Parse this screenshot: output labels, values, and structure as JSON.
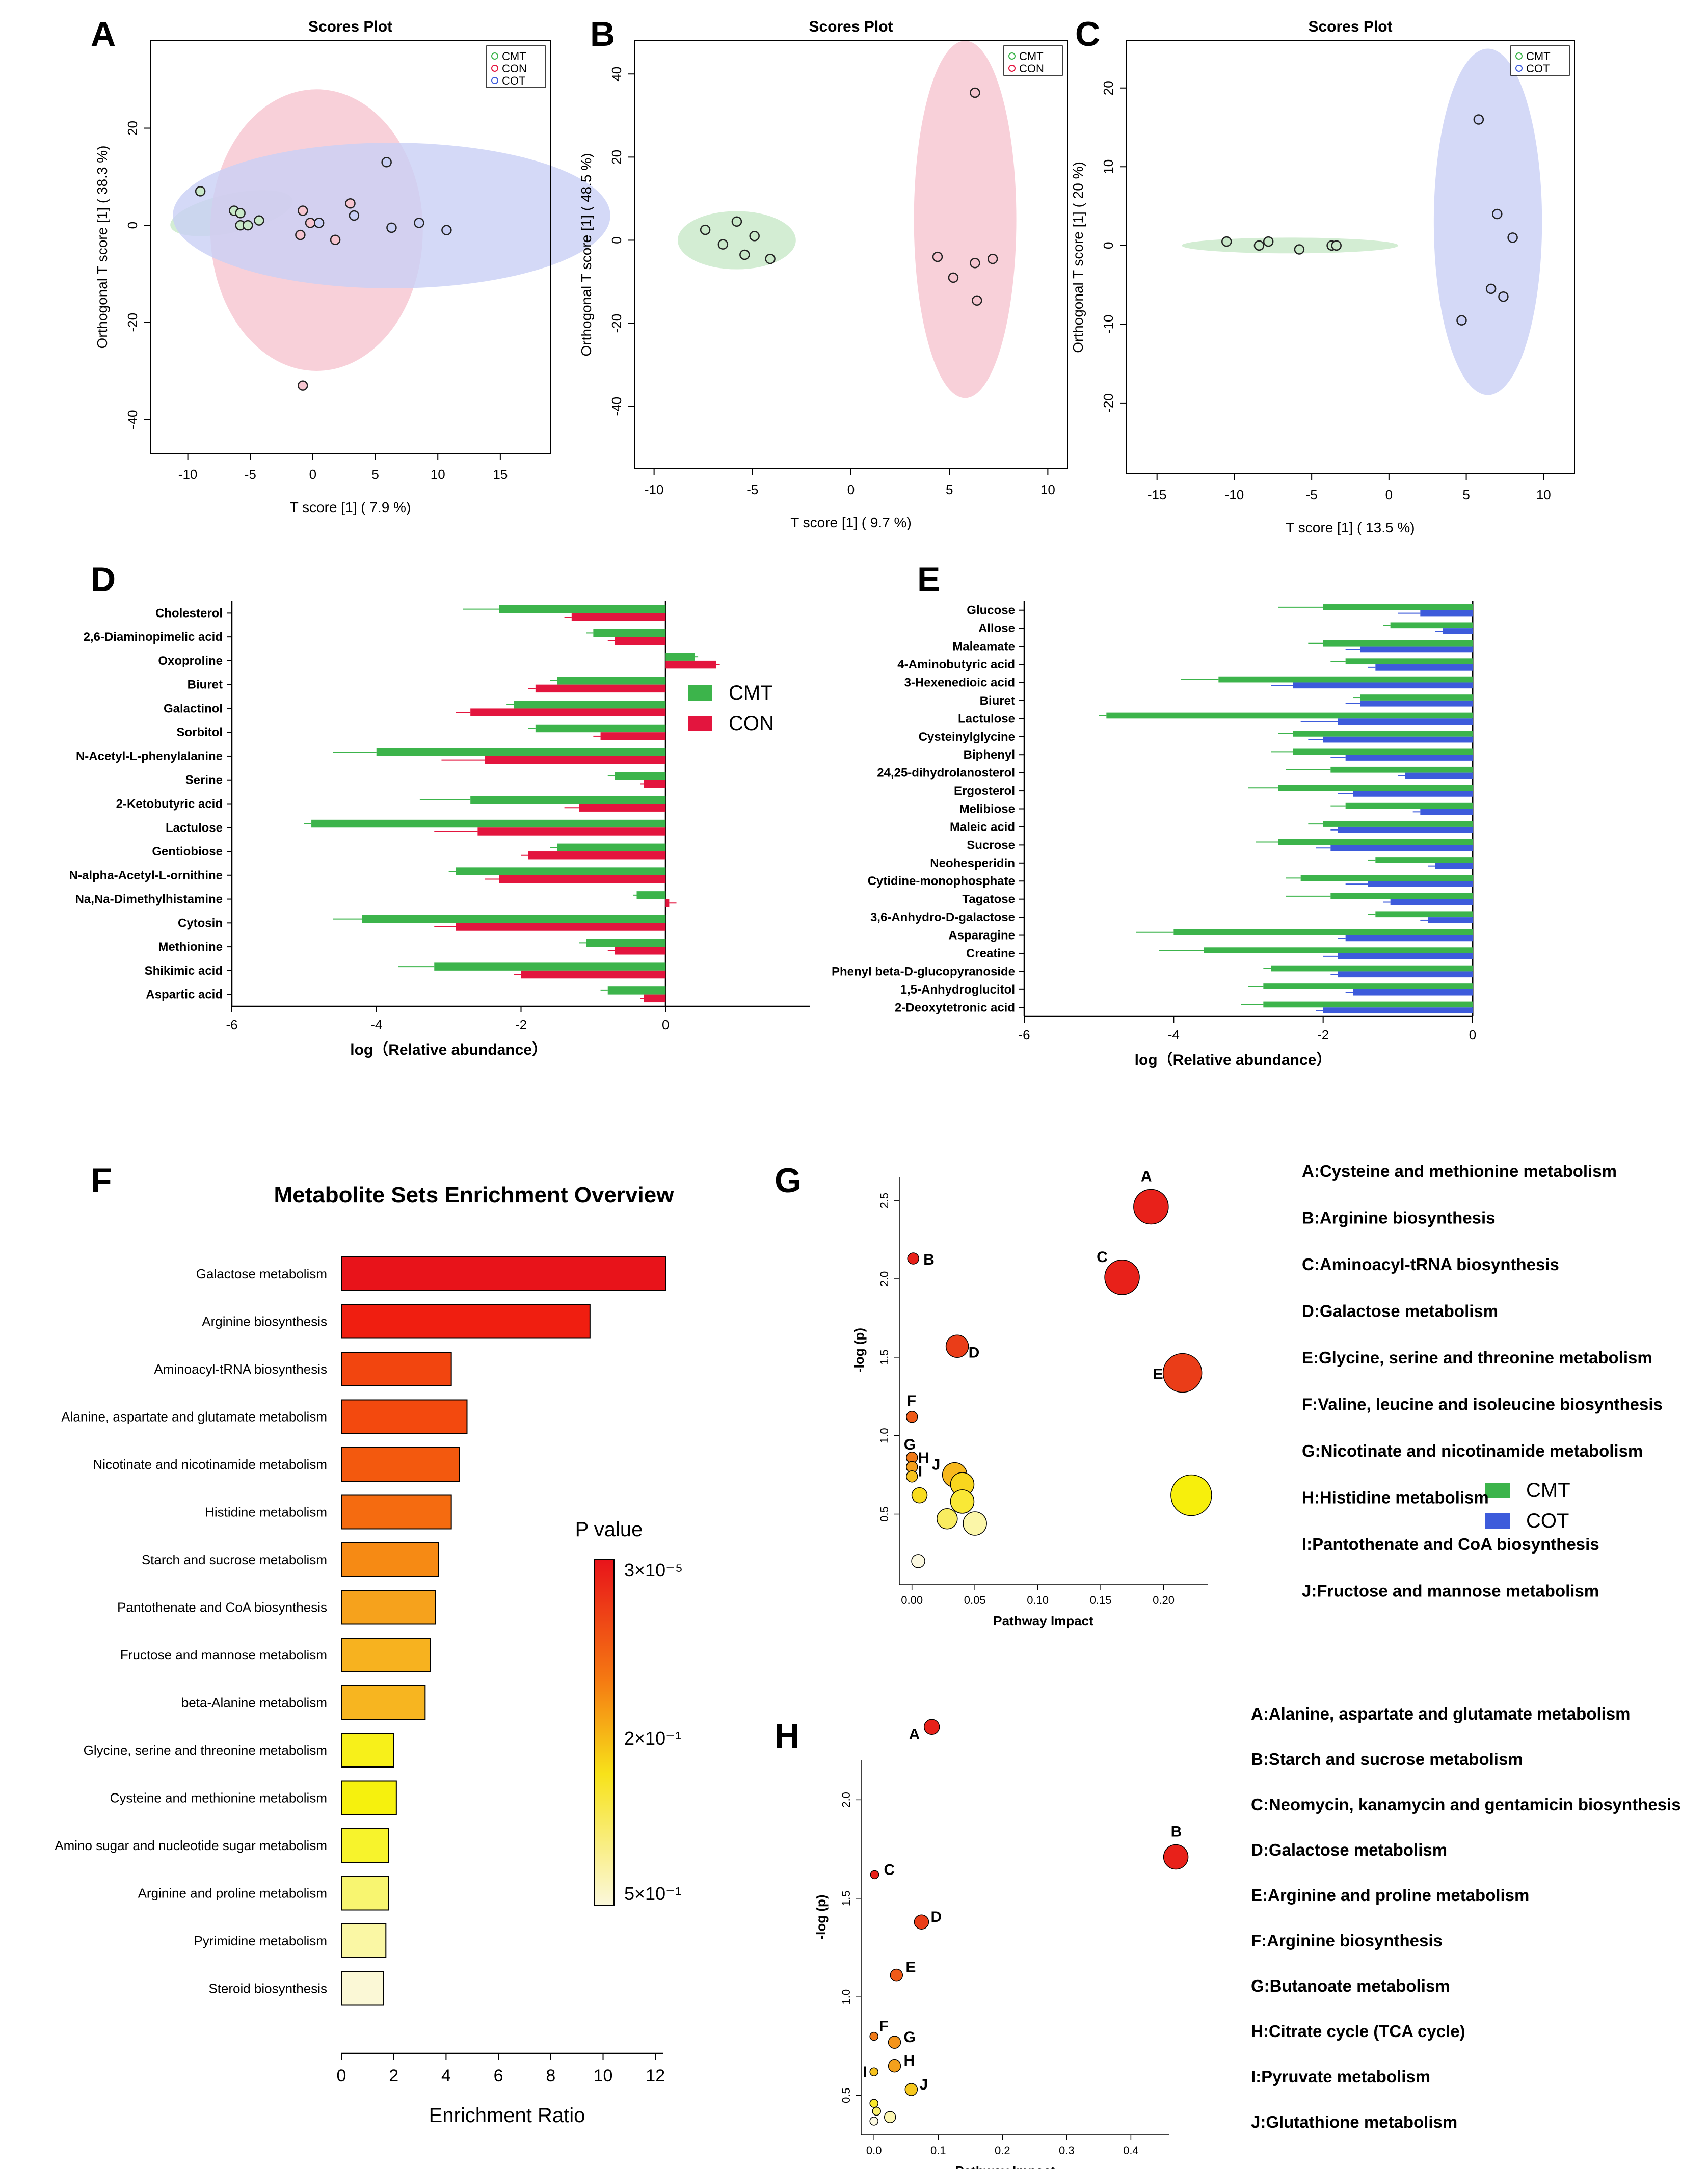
{
  "panel_labels": {
    "A": "A",
    "B": "B",
    "C": "C",
    "D": "D",
    "E": "E",
    "F": "F",
    "G": "G",
    "H": "H"
  },
  "colors": {
    "CMT": "#3cb44b",
    "CON": "#e3153e",
    "COT": "#3d5bdb",
    "CMT_ellipse": "#c8e8c8",
    "CON_ellipse": "#f6c4cf",
    "COT_ellipse": "#c9cff5"
  },
  "chart_data": [
    {
      "id": "A",
      "type": "scatter",
      "title": "Scores Plot",
      "xlabel": "T score [1] ( 7.9 %)",
      "ylabel": "Orthogonal T score [1] ( 38.3 %)",
      "xlim": [
        -13,
        19
      ],
      "ylim": [
        -47,
        38
      ],
      "xticks": [
        -10,
        -5,
        0,
        5,
        10,
        15
      ],
      "yticks": [
        -40,
        -20,
        0,
        20
      ],
      "legend": [
        "CMT",
        "CON",
        "COT"
      ],
      "series": [
        {
          "name": "CMT",
          "points": [
            [
              -9,
              7
            ],
            [
              -6.3,
              3
            ],
            [
              -5.8,
              2.5
            ],
            [
              -5.8,
              0
            ],
            [
              -5.2,
              0
            ],
            [
              -4.3,
              1
            ]
          ]
        },
        {
          "name": "CON",
          "points": [
            [
              -0.8,
              3
            ],
            [
              -0.2,
              0.5
            ],
            [
              -1,
              -2
            ],
            [
              1.8,
              -3
            ],
            [
              3,
              4.5
            ],
            [
              -0.8,
              -33
            ]
          ]
        },
        {
          "name": "COT",
          "points": [
            [
              0.5,
              0.5
            ],
            [
              3.3,
              2
            ],
            [
              5.9,
              13
            ],
            [
              6.3,
              -0.5
            ],
            [
              8.5,
              0.5
            ],
            [
              10.7,
              -1
            ]
          ]
        }
      ],
      "ellipses": [
        {
          "name": "CMT",
          "cx": -6.5,
          "cy": 2.5,
          "rx": 5,
          "ry": 4,
          "angle": -12
        },
        {
          "name": "CON",
          "cx": 0.3,
          "cy": -1,
          "rx": 8.5,
          "ry": 29,
          "angle": 0
        },
        {
          "name": "COT",
          "cx": 6.3,
          "cy": 2,
          "rx": 17.5,
          "ry": 15,
          "angle": 0
        }
      ]
    },
    {
      "id": "B",
      "type": "scatter",
      "title": "Scores Plot",
      "xlabel": "T score [1] ( 9.7 %)",
      "ylabel": "Orthogonal T score [1] ( 48.5 %)",
      "xlim": [
        -11,
        11
      ],
      "ylim": [
        -55,
        48
      ],
      "xticks": [
        -10,
        -5,
        0,
        5,
        10
      ],
      "yticks": [
        -40,
        -20,
        0,
        20,
        40
      ],
      "legend": [
        "CMT",
        "CON"
      ],
      "series": [
        {
          "name": "CMT",
          "points": [
            [
              -7.4,
              2.5
            ],
            [
              -6.5,
              -1
            ],
            [
              -5.8,
              4.5
            ],
            [
              -5.4,
              -3.5
            ],
            [
              -4.9,
              1
            ],
            [
              -4.1,
              -4.5
            ]
          ]
        },
        {
          "name": "CON",
          "points": [
            [
              6.3,
              35.5
            ],
            [
              4.4,
              -4
            ],
            [
              5.2,
              -9
            ],
            [
              6.3,
              -5.5
            ],
            [
              7.2,
              -4.5
            ],
            [
              6.4,
              -14.5
            ]
          ]
        }
      ],
      "ellipses": [
        {
          "name": "CMT",
          "cx": -5.8,
          "cy": 0,
          "rx": 3,
          "ry": 7,
          "angle": 0
        },
        {
          "name": "CON",
          "cx": 5.8,
          "cy": 5,
          "rx": 2.6,
          "ry": 43,
          "angle": 0
        }
      ]
    },
    {
      "id": "C",
      "type": "scatter",
      "title": "Scores Plot",
      "xlabel": "T score [1] ( 13.5 %)",
      "ylabel": "Orthogonal T score [1] ( 20 %)",
      "xlim": [
        -17,
        12
      ],
      "ylim": [
        -29,
        26
      ],
      "xticks": [
        -15,
        -10,
        -5,
        0,
        5,
        10
      ],
      "yticks": [
        -20,
        -10,
        0,
        10,
        20
      ],
      "legend": [
        "CMT",
        "COT"
      ],
      "series": [
        {
          "name": "CMT",
          "points": [
            [
              -10.5,
              0.5
            ],
            [
              -8.4,
              0
            ],
            [
              -7.8,
              0.5
            ],
            [
              -5.8,
              -0.5
            ],
            [
              -3.7,
              0
            ],
            [
              -3.4,
              0
            ]
          ]
        },
        {
          "name": "COT",
          "points": [
            [
              5.8,
              16
            ],
            [
              7,
              4
            ],
            [
              8,
              1
            ],
            [
              6.6,
              -5.5
            ],
            [
              7.4,
              -6.5
            ],
            [
              4.7,
              -9.5
            ]
          ]
        }
      ],
      "ellipses": [
        {
          "name": "CMT",
          "cx": -6.4,
          "cy": 0,
          "rx": 7,
          "ry": 1,
          "angle": 0
        },
        {
          "name": "COT",
          "cx": 6.4,
          "cy": 3,
          "rx": 3.5,
          "ry": 22,
          "angle": 0
        }
      ]
    },
    {
      "id": "D",
      "type": "bar",
      "orientation": "horizontal",
      "xlabel": "log（Relative abundance）",
      "xlim": [
        -6,
        2
      ],
      "xticks": [
        -6,
        -4,
        -2,
        0
      ],
      "categories": [
        "Cholesterol",
        "2,6-Diaminopimelic acid",
        "Oxoproline",
        "Biuret",
        "Galactinol",
        "Sorbitol",
        "N-Acetyl-L-phenylalanine",
        "Serine",
        "2-Ketobutyric acid",
        "Lactulose",
        "Gentiobiose",
        "N-alpha-Acetyl-L-ornithine",
        "Na,Na-Dimethylhistamine",
        "Cytosin",
        "Methionine",
        "Shikimic acid",
        "Aspartic acid"
      ],
      "series": [
        {
          "name": "CMT",
          "values": [
            -2.3,
            -1.0,
            0.4,
            -1.5,
            -2.1,
            -1.8,
            -4.0,
            -0.7,
            -2.7,
            -4.9,
            -1.5,
            -2.9,
            -0.4,
            -4.2,
            -1.1,
            -3.2,
            -0.8
          ],
          "errors": [
            0.5,
            0.1,
            0.05,
            0.1,
            0.1,
            0.1,
            0.6,
            0.1,
            0.7,
            0.1,
            0.1,
            0.1,
            0.05,
            0.4,
            0.1,
            0.5,
            0.1
          ]
        },
        {
          "name": "CON",
          "values": [
            -1.3,
            -0.7,
            0.7,
            -1.8,
            -2.7,
            -0.9,
            -2.5,
            -0.3,
            -1.2,
            -2.6,
            -1.9,
            -2.3,
            0.05,
            -2.9,
            -0.7,
            -2.0,
            -0.3
          ],
          "errors": [
            0.1,
            0.1,
            0.05,
            0.1,
            0.2,
            0.1,
            0.6,
            0.05,
            0.2,
            0.6,
            0.1,
            0.2,
            0.1,
            0.3,
            0.1,
            0.1,
            0.05
          ]
        }
      ],
      "legend": [
        "CMT",
        "CON"
      ]
    },
    {
      "id": "E",
      "type": "bar",
      "orientation": "horizontal",
      "xlabel": "log（Relative abundance）",
      "xlim": [
        -6,
        0
      ],
      "xticks": [
        -6,
        -4,
        -2,
        0
      ],
      "categories": [
        "Glucose",
        "Allose",
        "Maleamate",
        "4-Aminobutyric acid",
        "3-Hexenedioic acid",
        "Biuret",
        "Lactulose",
        "Cysteinylglycine",
        "Biphenyl",
        "24,25-dihydrolanosterol",
        "Ergosterol",
        "Melibiose",
        "Maleic acid",
        "Sucrose",
        "Neohesperidin",
        "Cytidine-monophosphate",
        "Tagatose",
        "3,6-Anhydro-D-galactose",
        "Asparagine",
        "Creatine",
        "Phenyl beta-D-glucopyranoside",
        "1,5-Anhydroglucitol",
        "2-Deoxytetronic acid"
      ],
      "series": [
        {
          "name": "CMT",
          "values": [
            -2.0,
            -1.1,
            -2.0,
            -1.7,
            -3.4,
            -1.5,
            -4.9,
            -2.4,
            -2.4,
            -1.9,
            -2.6,
            -1.7,
            -2.0,
            -2.6,
            -1.3,
            -2.3,
            -1.9,
            -1.3,
            -4.0,
            -3.6,
            -2.7,
            -2.8,
            -2.8
          ],
          "errors": [
            0.6,
            0.1,
            0.2,
            0.2,
            0.5,
            0.1,
            0.1,
            0.2,
            0.3,
            0.6,
            0.4,
            0.2,
            0.2,
            0.3,
            0.1,
            0.2,
            0.6,
            0.1,
            0.5,
            0.6,
            0.1,
            0.2,
            0.3
          ]
        },
        {
          "name": "COT",
          "values": [
            -0.7,
            -0.4,
            -1.5,
            -1.3,
            -2.4,
            -1.5,
            -1.8,
            -2.0,
            -1.7,
            -0.9,
            -1.6,
            -0.7,
            -1.8,
            -1.9,
            -0.5,
            -1.4,
            -1.1,
            -0.6,
            -1.7,
            -1.8,
            -1.8,
            -1.6,
            -2.0
          ],
          "errors": [
            0.3,
            0.1,
            0.2,
            0.1,
            0.3,
            0.2,
            0.5,
            0.2,
            0.2,
            0.1,
            0.2,
            0.1,
            0.1,
            0.2,
            0.1,
            0.3,
            0.1,
            0.1,
            0.1,
            0.2,
            0.1,
            0.1,
            0.1
          ]
        }
      ],
      "legend": [
        "CMT",
        "COT"
      ]
    },
    {
      "id": "F",
      "type": "bar",
      "orientation": "horizontal",
      "title": "Metabolite Sets Enrichment Overview",
      "xlabel": "Enrichment Ratio",
      "xlim": [
        0,
        12.5
      ],
      "xticks": [
        0,
        2,
        4,
        6,
        8,
        10,
        12
      ],
      "categories": [
        "Galactose metabolism",
        "Arginine biosynthesis",
        "Aminoacyl-tRNA biosynthesis",
        "Alanine, aspartate and glutamate metabolism",
        "Nicotinate and nicotinamide metabolism",
        "Histidine metabolism",
        "Starch and sucrose metabolism",
        "Pantothenate and CoA biosynthesis",
        "Fructose and mannose metabolism",
        "beta-Alanine metabolism",
        "Glycine, serine and threonine metabolism",
        "Cysteine and methionine metabolism",
        "Amino sugar and nucleotide sugar metabolism",
        "Arginine and proline metabolism",
        "Pyrimidine metabolism",
        "Steroid biosynthesis"
      ],
      "values": [
        12.4,
        9.5,
        4.2,
        4.8,
        4.5,
        4.2,
        3.7,
        3.6,
        3.4,
        3.2,
        2.0,
        2.1,
        1.8,
        1.8,
        1.7,
        1.6
      ],
      "colors": [
        "#e8131a",
        "#f01e10",
        "#f2450f",
        "#f3490e",
        "#f3590e",
        "#f56b10",
        "#f68a14",
        "#f6a21c",
        "#f7b21f",
        "#f7b520",
        "#f7f01a",
        "#f6f10d",
        "#f7f32c",
        "#f8f570",
        "#faf7a4",
        "#fbf8d6"
      ],
      "legend_title": "P value",
      "legend_labels": [
        "3×10⁻⁵",
        "2×10⁻¹",
        "5×10⁻¹"
      ]
    },
    {
      "id": "G",
      "type": "scatter",
      "subtype": "bubble",
      "xlabel": "Pathway Impact",
      "ylabel": "-log (p)",
      "xlim": [
        -0.01,
        0.235
      ],
      "ylim": [
        0.05,
        2.65
      ],
      "xticks": [
        0.0,
        0.05,
        0.1,
        0.15,
        0.2
      ],
      "xtick_labels": [
        "0.00",
        "0.05",
        "0.10",
        "0.15",
        "0.20"
      ],
      "yticks": [
        0.5,
        1.0,
        1.5,
        2.0,
        2.5
      ],
      "ytick_labels": [
        "0.5",
        "1.0",
        "1.5",
        "2.0",
        "2.5"
      ],
      "points": [
        {
          "label": "A",
          "x": 0.19,
          "y": 2.46,
          "size": 34,
          "color": "#e8211a"
        },
        {
          "label": "B",
          "x": 0.001,
          "y": 2.13,
          "size": 11,
          "color": "#e8211a"
        },
        {
          "label": "C",
          "x": 0.167,
          "y": 2.01,
          "size": 34,
          "color": "#e8211a"
        },
        {
          "label": "D",
          "x": 0.036,
          "y": 1.57,
          "size": 22,
          "color": "#ea3d18"
        },
        {
          "label": "E",
          "x": 0.215,
          "y": 1.4,
          "size": 38,
          "color": "#ea3d18"
        },
        {
          "label": "F",
          "x": 0.0,
          "y": 1.12,
          "size": 11,
          "color": "#ef5a18"
        },
        {
          "label": "G",
          "x": 0.0,
          "y": 0.86,
          "size": 11,
          "color": "#f07a18"
        },
        {
          "label": "H",
          "x": 0.0,
          "y": 0.8,
          "size": 11,
          "color": "#f3a01c"
        },
        {
          "label": "I",
          "x": 0.0,
          "y": 0.74,
          "size": 11,
          "color": "#f6c21e"
        },
        {
          "label": "J",
          "x": 0.034,
          "y": 0.75,
          "size": 24,
          "color": "#f7b81e"
        },
        {
          "label": "",
          "x": 0.006,
          "y": 0.62,
          "size": 15,
          "color": "#f8dc1e"
        },
        {
          "label": "",
          "x": 0.04,
          "y": 0.69,
          "size": 23,
          "color": "#f8d61e"
        },
        {
          "label": "",
          "x": 0.04,
          "y": 0.58,
          "size": 23,
          "color": "#f9e836"
        },
        {
          "label": "",
          "x": 0.028,
          "y": 0.47,
          "size": 20,
          "color": "#f9ec60"
        },
        {
          "label": "",
          "x": 0.05,
          "y": 0.44,
          "size": 23,
          "color": "#fbf6a8"
        },
        {
          "label": "",
          "x": 0.222,
          "y": 0.62,
          "size": 40,
          "color": "#f7ef0c"
        },
        {
          "label": "",
          "x": 0.005,
          "y": 0.2,
          "size": 13,
          "color": "#fbf8e0"
        }
      ],
      "legend": [
        "A:Cysteine and methionine metabolism",
        "B:Arginine biosynthesis",
        "C:Aminoacyl-tRNA biosynthesis",
        "D:Galactose metabolism",
        "E:Glycine, serine and threonine metabolism",
        "F:Valine, leucine and isoleucine biosynthesis",
        "G:Nicotinate and nicotinamide metabolism",
        "H:Histidine metabolism",
        "I:Pantothenate and CoA biosynthesis",
        "J:Fructose and mannose metabolism"
      ]
    },
    {
      "id": "H",
      "type": "scatter",
      "subtype": "bubble",
      "xlabel": "Pathway Impact",
      "ylabel": "-log (p)",
      "xlim": [
        -0.02,
        0.46
      ],
      "ylim": [
        0.3,
        2.2
      ],
      "xticks": [
        0.0,
        0.1,
        0.2,
        0.3,
        0.4
      ],
      "xtick_labels": [
        "0.0",
        "0.1",
        "0.2",
        "0.3",
        "0.4"
      ],
      "yticks": [
        0.5,
        1.0,
        1.5,
        2.0
      ],
      "ytick_labels": [
        "0.5",
        "1.0",
        "1.5",
        "2.0"
      ],
      "points": [
        {
          "label": "A",
          "x": 0.09,
          "y": 2.37,
          "size": 15,
          "color": "#e8211a"
        },
        {
          "label": "B",
          "x": 0.47,
          "y": 1.71,
          "size": 24,
          "color": "#e8211a"
        },
        {
          "label": "C",
          "x": 0.001,
          "y": 1.62,
          "size": 8,
          "color": "#e8211a"
        },
        {
          "label": "D",
          "x": 0.074,
          "y": 1.38,
          "size": 14,
          "color": "#ea3d18"
        },
        {
          "label": "E",
          "x": 0.035,
          "y": 1.11,
          "size": 12,
          "color": "#ef5a18"
        },
        {
          "label": "F",
          "x": 0.0,
          "y": 0.8,
          "size": 8,
          "color": "#f07a18"
        },
        {
          "label": "G",
          "x": 0.032,
          "y": 0.77,
          "size": 12,
          "color": "#f3941c"
        },
        {
          "label": "H",
          "x": 0.032,
          "y": 0.65,
          "size": 12,
          "color": "#f3a01c"
        },
        {
          "label": "I",
          "x": 0.0,
          "y": 0.62,
          "size": 8,
          "color": "#f6c21e"
        },
        {
          "label": "J",
          "x": 0.058,
          "y": 0.53,
          "size": 12,
          "color": "#f6c81e"
        },
        {
          "label": "",
          "x": 0.0,
          "y": 0.46,
          "size": 8,
          "color": "#f8e82a"
        },
        {
          "label": "",
          "x": 0.004,
          "y": 0.42,
          "size": 8,
          "color": "#f9f06a"
        },
        {
          "label": "",
          "x": 0.025,
          "y": 0.39,
          "size": 11,
          "color": "#fbf6b0"
        },
        {
          "label": "",
          "x": 0.0,
          "y": 0.37,
          "size": 8,
          "color": "#fbf8e0"
        }
      ],
      "legend": [
        "A:Alanine, aspartate and glutamate metabolism",
        "B:Starch and sucrose metabolism",
        "C:Neomycin, kanamycin and gentamicin biosynthesis",
        "D:Galactose metabolism",
        "E:Arginine and proline metabolism",
        "F:Arginine biosynthesis",
        "G:Butanoate metabolism",
        "H:Citrate cycle (TCA cycle)",
        "I:Pyruvate metabolism",
        "J:Glutathione metabolism"
      ]
    }
  ]
}
